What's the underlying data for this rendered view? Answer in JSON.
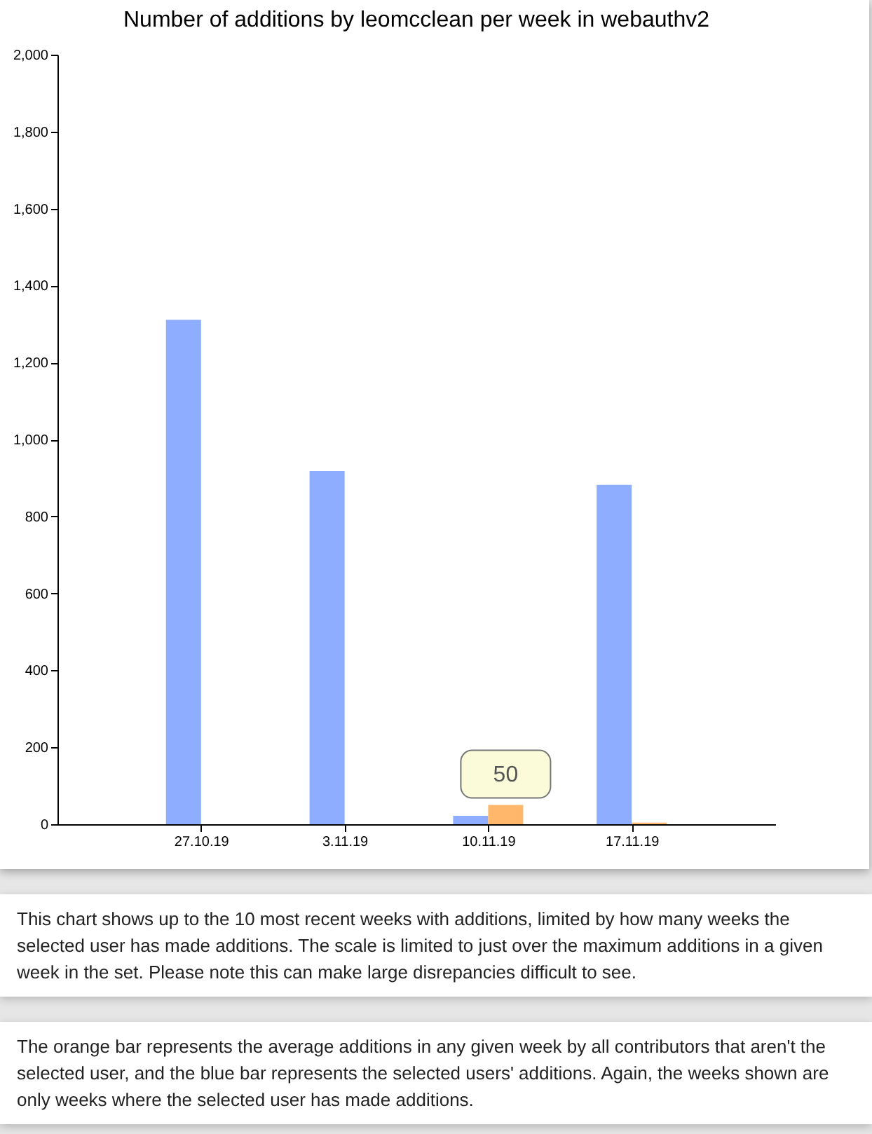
{
  "chart_data": {
    "type": "bar",
    "title": "Number of additions by leomcclean per week in webauthv2",
    "categories": [
      "27.10.19",
      "3.11.19",
      "10.11.19",
      "17.11.19"
    ],
    "series": [
      {
        "color": "#8fadff",
        "values": [
          1311,
          918,
          22,
          882
        ]
      },
      {
        "color": "#ffb86b",
        "values": [
          0,
          0,
          50,
          4
        ],
        "value_labels": [
          null,
          null,
          "50",
          null
        ]
      }
    ],
    "ylim": [
      0,
      2000
    ],
    "yticks": [
      0,
      200,
      400,
      600,
      800,
      {
        "value": 1000,
        "label": "1,000"
      },
      {
        "value": 1200,
        "label": "1,200"
      },
      {
        "value": 1400,
        "label": "1,400"
      },
      {
        "value": 1600,
        "label": "1,600"
      },
      {
        "value": 1800,
        "label": "1,800"
      },
      {
        "value": 2000,
        "label": "2,000"
      }
    ],
    "grid": false,
    "annotations": [
      "This chart shows up to the 10 most recent weeks with additions, limited by how many weeks the selected user has made additions. The scale is limited to just over the maximum additions in a given week in the set. Please note this can make large disrepancies difficult to see.",
      "The orange bar represents the average additions in any given week by all contributors that aren't the selected user, and the blue bar represents the selected users' additions. Again, the weeks shown are only weeks where the selected user has made additions."
    ]
  }
}
